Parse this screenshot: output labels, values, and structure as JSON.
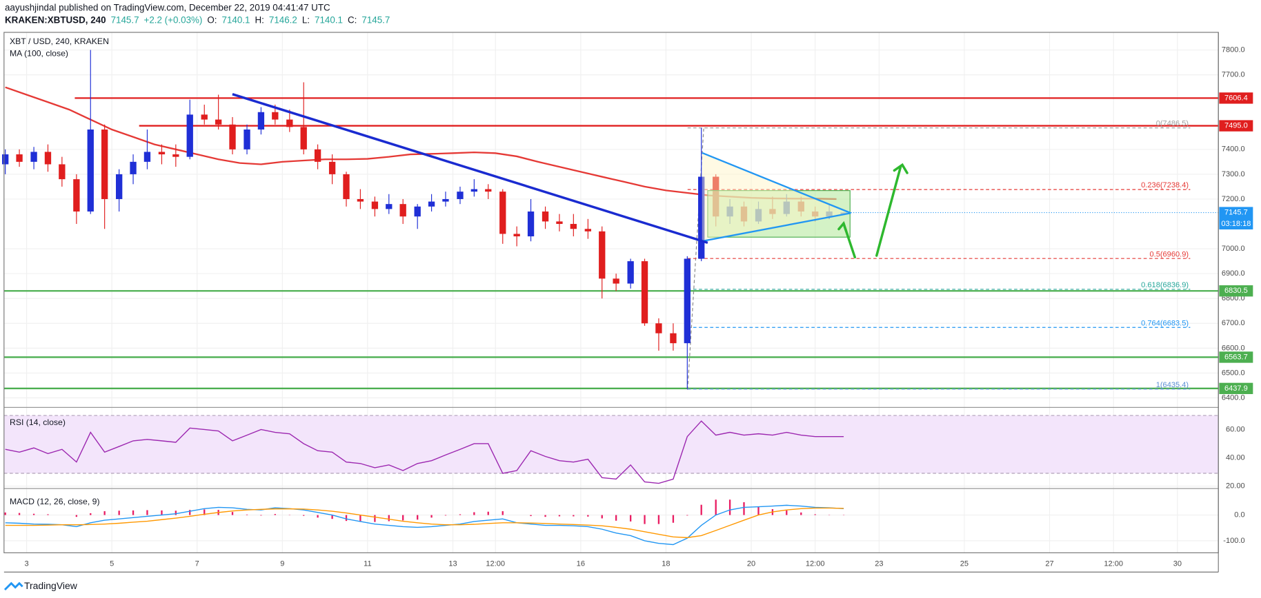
{
  "header": {
    "line1": "aayushjindal published on TradingView.com, December 22, 2019 04:41:47 UTC",
    "symbol": "KRAKEN:XBTUSD, 240",
    "quote": [
      {
        "text": "7145.7",
        "color": "#26a69a"
      },
      {
        "text": "+2.2 (+0.03%)",
        "color": "#26a69a"
      },
      {
        "text": "O:",
        "color": "#131722"
      },
      {
        "text": "7140.1",
        "color": "#26a69a"
      },
      {
        "text": "H:",
        "color": "#131722"
      },
      {
        "text": "7146.2",
        "color": "#26a69a"
      },
      {
        "text": "L:",
        "color": "#131722"
      },
      {
        "text": "7140.1",
        "color": "#26a69a"
      },
      {
        "text": "C:",
        "color": "#131722"
      },
      {
        "text": "7145.7",
        "color": "#26a69a"
      }
    ]
  },
  "logo": "TradingView",
  "chart_data": [
    {
      "type": "candlestick",
      "title": "XBT / USD, 240, KRAKEN",
      "up_color": "#1f2fd6",
      "down_color": "#e01e1e",
      "xlim": [
        2.47,
        30.96
      ],
      "xticks": [
        3,
        5,
        7,
        9,
        11,
        13,
        {
          "value": 14,
          "label": "12:00"
        },
        16,
        18,
        20,
        {
          "value": 21.5,
          "label": "12:00"
        },
        23,
        25,
        27,
        {
          "value": 28.5,
          "label": "12:00"
        },
        30
      ],
      "ylim": [
        6368,
        7871
      ],
      "yticks": [
        {
          "value": 7800,
          "label": "7800.0"
        },
        {
          "value": 7700,
          "label": "7700.0"
        },
        {
          "value": 7400,
          "label": "7400.0"
        },
        {
          "value": 7300,
          "label": "7300.0"
        },
        {
          "value": 7200,
          "label": "7200.0"
        },
        {
          "value": 7000,
          "label": "7000.0"
        },
        {
          "value": 6900,
          "label": "6900.0"
        },
        {
          "value": 6800,
          "label": "6800.0"
        },
        {
          "value": 6700,
          "label": "6700.0"
        },
        {
          "value": 6600,
          "label": "6600.0"
        },
        {
          "value": 6500,
          "label": "6500.0"
        },
        {
          "value": 6400,
          "label": "6400.0"
        }
      ],
      "grid": true,
      "x": [
        2.5,
        2.83,
        3.17,
        3.5,
        3.83,
        4.17,
        4.5,
        4.83,
        5.17,
        5.5,
        5.83,
        6.17,
        6.5,
        6.83,
        7.17,
        7.5,
        7.83,
        8.17,
        8.5,
        8.83,
        9.17,
        9.5,
        9.83,
        10.17,
        10.5,
        10.83,
        11.17,
        11.5,
        11.83,
        12.17,
        12.5,
        12.83,
        13.17,
        13.5,
        13.83,
        14.17,
        14.5,
        14.83,
        15.17,
        15.5,
        15.83,
        16.17,
        16.5,
        16.83,
        17.17,
        17.5,
        17.83,
        18.17,
        18.5,
        18.83,
        19.17,
        19.5,
        19.83,
        20.17,
        20.5,
        20.83,
        21.17,
        21.5,
        21.83,
        22.17
      ],
      "open": [
        7340,
        7380,
        7350,
        7390,
        7340,
        7280,
        7150,
        7480,
        7200,
        7300,
        7350,
        7390,
        7380,
        7370,
        7540,
        7520,
        7500,
        7400,
        7480,
        7550,
        7520,
        7490,
        7400,
        7350,
        7300,
        7200,
        7190,
        7160,
        7180,
        7130,
        7170,
        7190,
        7200,
        7230,
        7240,
        7230,
        7060,
        7050,
        7150,
        7110,
        7100,
        7080,
        7070,
        6880,
        6860,
        6950,
        6700,
        6660,
        6620,
        6960,
        7290,
        7130,
        7170,
        7110,
        7160,
        7140,
        7190,
        7150,
        7130,
        7140.1
      ],
      "high": [
        7400,
        7400,
        7410,
        7420,
        7370,
        7300,
        7800,
        7500,
        7320,
        7380,
        7480,
        7420,
        7420,
        7600,
        7580,
        7620,
        7530,
        7500,
        7570,
        7580,
        7560,
        7670,
        7420,
        7380,
        7310,
        7240,
        7210,
        7220,
        7200,
        7180,
        7220,
        7230,
        7250,
        7280,
        7260,
        7240,
        7090,
        7200,
        7170,
        7140,
        7140,
        7120,
        7090,
        6900,
        6960,
        6960,
        6720,
        6700,
        6970,
        7486.5,
        7300,
        7200,
        7190,
        7190,
        7210,
        7220,
        7210,
        7170,
        7180,
        7146.2
      ],
      "low": [
        7300,
        7330,
        7320,
        7310,
        7250,
        7100,
        7140,
        7080,
        7150,
        7260,
        7320,
        7340,
        7330,
        7360,
        7500,
        7480,
        7380,
        7380,
        7460,
        7500,
        7470,
        7380,
        7320,
        7260,
        7170,
        7160,
        7130,
        7140,
        7100,
        7080,
        7150,
        7170,
        7180,
        7210,
        7200,
        7020,
        7010,
        7030,
        7080,
        7070,
        7050,
        7040,
        6800,
        6830,
        6840,
        6690,
        6590,
        6590,
        6435.4,
        6950,
        7090,
        7100,
        7090,
        7100,
        7120,
        7130,
        7130,
        7110,
        7120,
        7140.1
      ],
      "close": [
        7380,
        7350,
        7390,
        7340,
        7280,
        7150,
        7480,
        7200,
        7300,
        7350,
        7390,
        7380,
        7370,
        7540,
        7520,
        7500,
        7400,
        7480,
        7550,
        7520,
        7490,
        7400,
        7350,
        7300,
        7200,
        7190,
        7160,
        7180,
        7130,
        7170,
        7190,
        7200,
        7230,
        7240,
        7230,
        7060,
        7050,
        7150,
        7110,
        7100,
        7080,
        7070,
        6880,
        6860,
        6950,
        6700,
        6660,
        6620,
        6960,
        7290,
        7130,
        7170,
        7110,
        7160,
        7140,
        7190,
        7150,
        7130,
        7150,
        7145.7
      ],
      "ma": {
        "label": "MA (100, close)",
        "color": "#e53935",
        "x": [
          2.5,
          3,
          3.5,
          4,
          4.5,
          5,
          5.5,
          6,
          6.5,
          7,
          7.5,
          8,
          8.5,
          9,
          9.5,
          10,
          10.5,
          11,
          11.5,
          12,
          12.5,
          13,
          13.5,
          14,
          14.5,
          15,
          15.5,
          16,
          16.5,
          17,
          17.5,
          18,
          18.5,
          19,
          19.5,
          20,
          20.5,
          21,
          21.5,
          22
        ],
        "values": [
          7650,
          7620,
          7590,
          7560,
          7520,
          7480,
          7450,
          7420,
          7400,
          7380,
          7360,
          7345,
          7340,
          7350,
          7355,
          7360,
          7360,
          7362,
          7370,
          7380,
          7382,
          7385,
          7388,
          7385,
          7372,
          7350,
          7330,
          7310,
          7290,
          7270,
          7250,
          7235,
          7225,
          7215,
          7210,
          7205,
          7203,
          7202,
          7202,
          7200
        ]
      },
      "levels": [
        {
          "price": 7606.4,
          "label": "7606.4",
          "color": "#e01e1e"
        },
        {
          "price": 7495,
          "label": "7495.0",
          "color": "#e01e1e"
        },
        {
          "price": 6830.5,
          "label": "6830.5",
          "color": "#4caf50"
        },
        {
          "price": 6563.7,
          "label": "6563.7",
          "color": "#4caf50"
        },
        {
          "price": 6437.9,
          "label": "6437.9",
          "color": "#4caf50"
        }
      ],
      "last_price": {
        "label": "7145.7",
        "countdown": "03:18:18",
        "color": "#2196f3"
      },
      "fib": [
        {
          "label": "0(7486.5)",
          "price": 7486.5,
          "color": "#9e9e9e"
        },
        {
          "label": "0.236(7238.4)",
          "price": 7238.4,
          "color": "#e53935"
        },
        {
          "label": "0.5(6960.9)",
          "price": 6960.9,
          "color": "#e53935"
        },
        {
          "label": "0.618(6836.9)",
          "price": 6836.9,
          "color": "#26a69a"
        },
        {
          "label": "0.764(6683.5)",
          "price": 6683.5,
          "color": "#2196f3"
        },
        {
          "label": "1(6435.4)",
          "price": 6435.4,
          "color": "#5b8fd5"
        }
      ]
    },
    {
      "type": "line",
      "title": "RSI (14, close)",
      "color": "#9c27b0",
      "ylim": [
        18.3,
        75.6
      ],
      "yticks": [
        {
          "value": 60,
          "label": "60.00"
        },
        {
          "value": 40,
          "label": "40.00"
        },
        {
          "value": 20,
          "label": "20.00"
        }
      ],
      "x": [
        2.5,
        2.83,
        3.17,
        3.5,
        3.83,
        4.17,
        4.5,
        4.83,
        5.17,
        5.5,
        5.83,
        6.17,
        6.5,
        6.83,
        7.17,
        7.5,
        7.83,
        8.17,
        8.5,
        8.83,
        9.17,
        9.5,
        9.83,
        10.17,
        10.5,
        10.83,
        11.17,
        11.5,
        11.83,
        12.17,
        12.5,
        12.83,
        13.17,
        13.5,
        13.83,
        14.17,
        14.5,
        14.83,
        15.17,
        15.5,
        15.83,
        16.17,
        16.5,
        16.83,
        17.17,
        17.5,
        17.83,
        18.17,
        18.5,
        18.83,
        19.17,
        19.5,
        19.83,
        20.17,
        20.5,
        20.83,
        21.17,
        21.5,
        21.83,
        22.17
      ],
      "values": [
        46,
        44,
        47,
        43,
        46,
        37,
        58,
        44,
        48,
        52,
        53,
        52,
        51,
        61,
        60,
        59,
        52,
        56,
        60,
        58,
        57,
        50,
        45,
        44,
        37,
        36,
        33,
        35,
        31,
        36,
        38,
        42,
        46,
        50,
        50,
        29,
        31,
        45,
        41,
        38,
        37,
        39,
        26,
        25,
        35,
        23,
        22,
        25,
        55,
        66,
        56,
        58,
        56,
        57,
        56,
        58,
        56,
        55,
        55,
        55
      ]
    },
    {
      "type": "macd",
      "title": "MACD (12, 26, close, 9)",
      "ylim": [
        -147,
        100
      ],
      "yticks": [
        {
          "value": 0,
          "label": "0.0"
        },
        {
          "value": -100,
          "label": "-100.0"
        }
      ],
      "x": [
        2.5,
        2.83,
        3.17,
        3.5,
        3.83,
        4.17,
        4.5,
        4.83,
        5.17,
        5.5,
        5.83,
        6.17,
        6.5,
        6.83,
        7.17,
        7.5,
        7.83,
        8.17,
        8.5,
        8.83,
        9.17,
        9.5,
        9.83,
        10.17,
        10.5,
        10.83,
        11.17,
        11.5,
        11.83,
        12.17,
        12.5,
        12.83,
        13.17,
        13.5,
        13.83,
        14.17,
        14.5,
        14.83,
        15.17,
        15.5,
        15.83,
        16.17,
        16.5,
        16.83,
        17.17,
        17.5,
        17.83,
        18.17,
        18.5,
        18.83,
        19.17,
        19.5,
        19.83,
        20.17,
        20.5,
        20.83,
        21.17,
        21.5,
        21.83,
        22.17
      ],
      "histogram": {
        "color": "#e91e63",
        "values": [
          10,
          8,
          5,
          3,
          0,
          -7,
          7,
          15,
          17,
          18,
          19,
          18,
          17,
          20,
          22,
          20,
          12,
          2,
          -2,
          4,
          1,
          -3,
          -10,
          -15,
          -23,
          -25,
          -27,
          -24,
          -21,
          -18,
          -10,
          -2,
          3,
          11,
          13,
          15,
          0,
          -4,
          -7,
          -5,
          -5,
          -6,
          -13,
          -22,
          -25,
          -35,
          -35,
          -30,
          -2,
          40,
          60,
          60,
          50,
          32,
          23,
          18,
          10,
          3,
          1,
          -1
        ]
      },
      "series": [
        {
          "color": "#2196f3",
          "values": [
            -30,
            -32,
            -35,
            -36,
            -38,
            -45,
            -30,
            -20,
            -15,
            -10,
            -5,
            0,
            5,
            15,
            25,
            30,
            28,
            22,
            20,
            28,
            25,
            20,
            10,
            0,
            -15,
            -25,
            -35,
            -40,
            -45,
            -48,
            -45,
            -40,
            -35,
            -25,
            -20,
            -15,
            -30,
            -35,
            -40,
            -40,
            -42,
            -45,
            -55,
            -70,
            -80,
            -100,
            -110,
            -115,
            -90,
            -40,
            0,
            20,
            30,
            32,
            35,
            38,
            35,
            30,
            28,
            25
          ]
        },
        {
          "color": "#ff9800",
          "values": [
            -40,
            -40,
            -40,
            -39,
            -38,
            -38,
            -37,
            -35,
            -32,
            -28,
            -24,
            -18,
            -12,
            -5,
            3,
            10,
            16,
            20,
            22,
            24,
            24,
            23,
            20,
            15,
            8,
            0,
            -8,
            -16,
            -24,
            -30,
            -35,
            -38,
            -38,
            -36,
            -33,
            -30,
            -30,
            -31,
            -33,
            -35,
            -37,
            -39,
            -42,
            -48,
            -55,
            -65,
            -75,
            -85,
            -88,
            -80,
            -60,
            -40,
            -20,
            0,
            12,
            20,
            25,
            27,
            27,
            26
          ]
        }
      ]
    }
  ]
}
